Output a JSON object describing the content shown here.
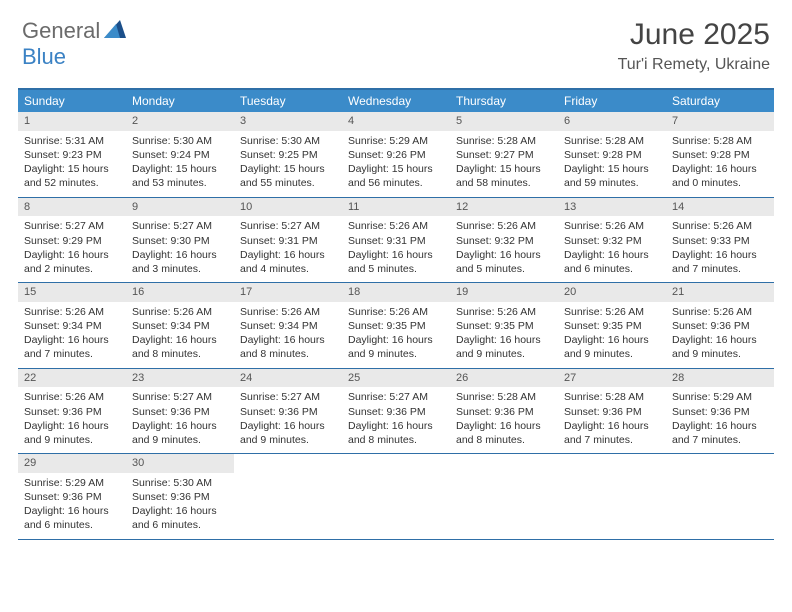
{
  "logo": {
    "text1": "General",
    "text2": "Blue"
  },
  "title": "June 2025",
  "location": "Tur'i Remety, Ukraine",
  "colors": {
    "header_bar": "#3b8bc9",
    "rule": "#2f6fa7",
    "daynum_bg": "#e9e9e9",
    "logo_gray": "#6b6b6b",
    "logo_blue": "#3b82c4",
    "text": "#333333",
    "title_text": "#444444"
  },
  "weekdays": [
    "Sunday",
    "Monday",
    "Tuesday",
    "Wednesday",
    "Thursday",
    "Friday",
    "Saturday"
  ],
  "weeks": [
    [
      {
        "n": "1",
        "sr": "5:31 AM",
        "ss": "9:23 PM",
        "dl": "15 hours and 52 minutes."
      },
      {
        "n": "2",
        "sr": "5:30 AM",
        "ss": "9:24 PM",
        "dl": "15 hours and 53 minutes."
      },
      {
        "n": "3",
        "sr": "5:30 AM",
        "ss": "9:25 PM",
        "dl": "15 hours and 55 minutes."
      },
      {
        "n": "4",
        "sr": "5:29 AM",
        "ss": "9:26 PM",
        "dl": "15 hours and 56 minutes."
      },
      {
        "n": "5",
        "sr": "5:28 AM",
        "ss": "9:27 PM",
        "dl": "15 hours and 58 minutes."
      },
      {
        "n": "6",
        "sr": "5:28 AM",
        "ss": "9:28 PM",
        "dl": "15 hours and 59 minutes."
      },
      {
        "n": "7",
        "sr": "5:28 AM",
        "ss": "9:28 PM",
        "dl": "16 hours and 0 minutes."
      }
    ],
    [
      {
        "n": "8",
        "sr": "5:27 AM",
        "ss": "9:29 PM",
        "dl": "16 hours and 2 minutes."
      },
      {
        "n": "9",
        "sr": "5:27 AM",
        "ss": "9:30 PM",
        "dl": "16 hours and 3 minutes."
      },
      {
        "n": "10",
        "sr": "5:27 AM",
        "ss": "9:31 PM",
        "dl": "16 hours and 4 minutes."
      },
      {
        "n": "11",
        "sr": "5:26 AM",
        "ss": "9:31 PM",
        "dl": "16 hours and 5 minutes."
      },
      {
        "n": "12",
        "sr": "5:26 AM",
        "ss": "9:32 PM",
        "dl": "16 hours and 5 minutes."
      },
      {
        "n": "13",
        "sr": "5:26 AM",
        "ss": "9:32 PM",
        "dl": "16 hours and 6 minutes."
      },
      {
        "n": "14",
        "sr": "5:26 AM",
        "ss": "9:33 PM",
        "dl": "16 hours and 7 minutes."
      }
    ],
    [
      {
        "n": "15",
        "sr": "5:26 AM",
        "ss": "9:34 PM",
        "dl": "16 hours and 7 minutes."
      },
      {
        "n": "16",
        "sr": "5:26 AM",
        "ss": "9:34 PM",
        "dl": "16 hours and 8 minutes."
      },
      {
        "n": "17",
        "sr": "5:26 AM",
        "ss": "9:34 PM",
        "dl": "16 hours and 8 minutes."
      },
      {
        "n": "18",
        "sr": "5:26 AM",
        "ss": "9:35 PM",
        "dl": "16 hours and 9 minutes."
      },
      {
        "n": "19",
        "sr": "5:26 AM",
        "ss": "9:35 PM",
        "dl": "16 hours and 9 minutes."
      },
      {
        "n": "20",
        "sr": "5:26 AM",
        "ss": "9:35 PM",
        "dl": "16 hours and 9 minutes."
      },
      {
        "n": "21",
        "sr": "5:26 AM",
        "ss": "9:36 PM",
        "dl": "16 hours and 9 minutes."
      }
    ],
    [
      {
        "n": "22",
        "sr": "5:26 AM",
        "ss": "9:36 PM",
        "dl": "16 hours and 9 minutes."
      },
      {
        "n": "23",
        "sr": "5:27 AM",
        "ss": "9:36 PM",
        "dl": "16 hours and 9 minutes."
      },
      {
        "n": "24",
        "sr": "5:27 AM",
        "ss": "9:36 PM",
        "dl": "16 hours and 9 minutes."
      },
      {
        "n": "25",
        "sr": "5:27 AM",
        "ss": "9:36 PM",
        "dl": "16 hours and 8 minutes."
      },
      {
        "n": "26",
        "sr": "5:28 AM",
        "ss": "9:36 PM",
        "dl": "16 hours and 8 minutes."
      },
      {
        "n": "27",
        "sr": "5:28 AM",
        "ss": "9:36 PM",
        "dl": "16 hours and 7 minutes."
      },
      {
        "n": "28",
        "sr": "5:29 AM",
        "ss": "9:36 PM",
        "dl": "16 hours and 7 minutes."
      }
    ],
    [
      {
        "n": "29",
        "sr": "5:29 AM",
        "ss": "9:36 PM",
        "dl": "16 hours and 6 minutes."
      },
      {
        "n": "30",
        "sr": "5:30 AM",
        "ss": "9:36 PM",
        "dl": "16 hours and 6 minutes."
      },
      null,
      null,
      null,
      null,
      null
    ]
  ],
  "labels": {
    "sunrise": "Sunrise:",
    "sunset": "Sunset:",
    "daylight": "Daylight:"
  }
}
